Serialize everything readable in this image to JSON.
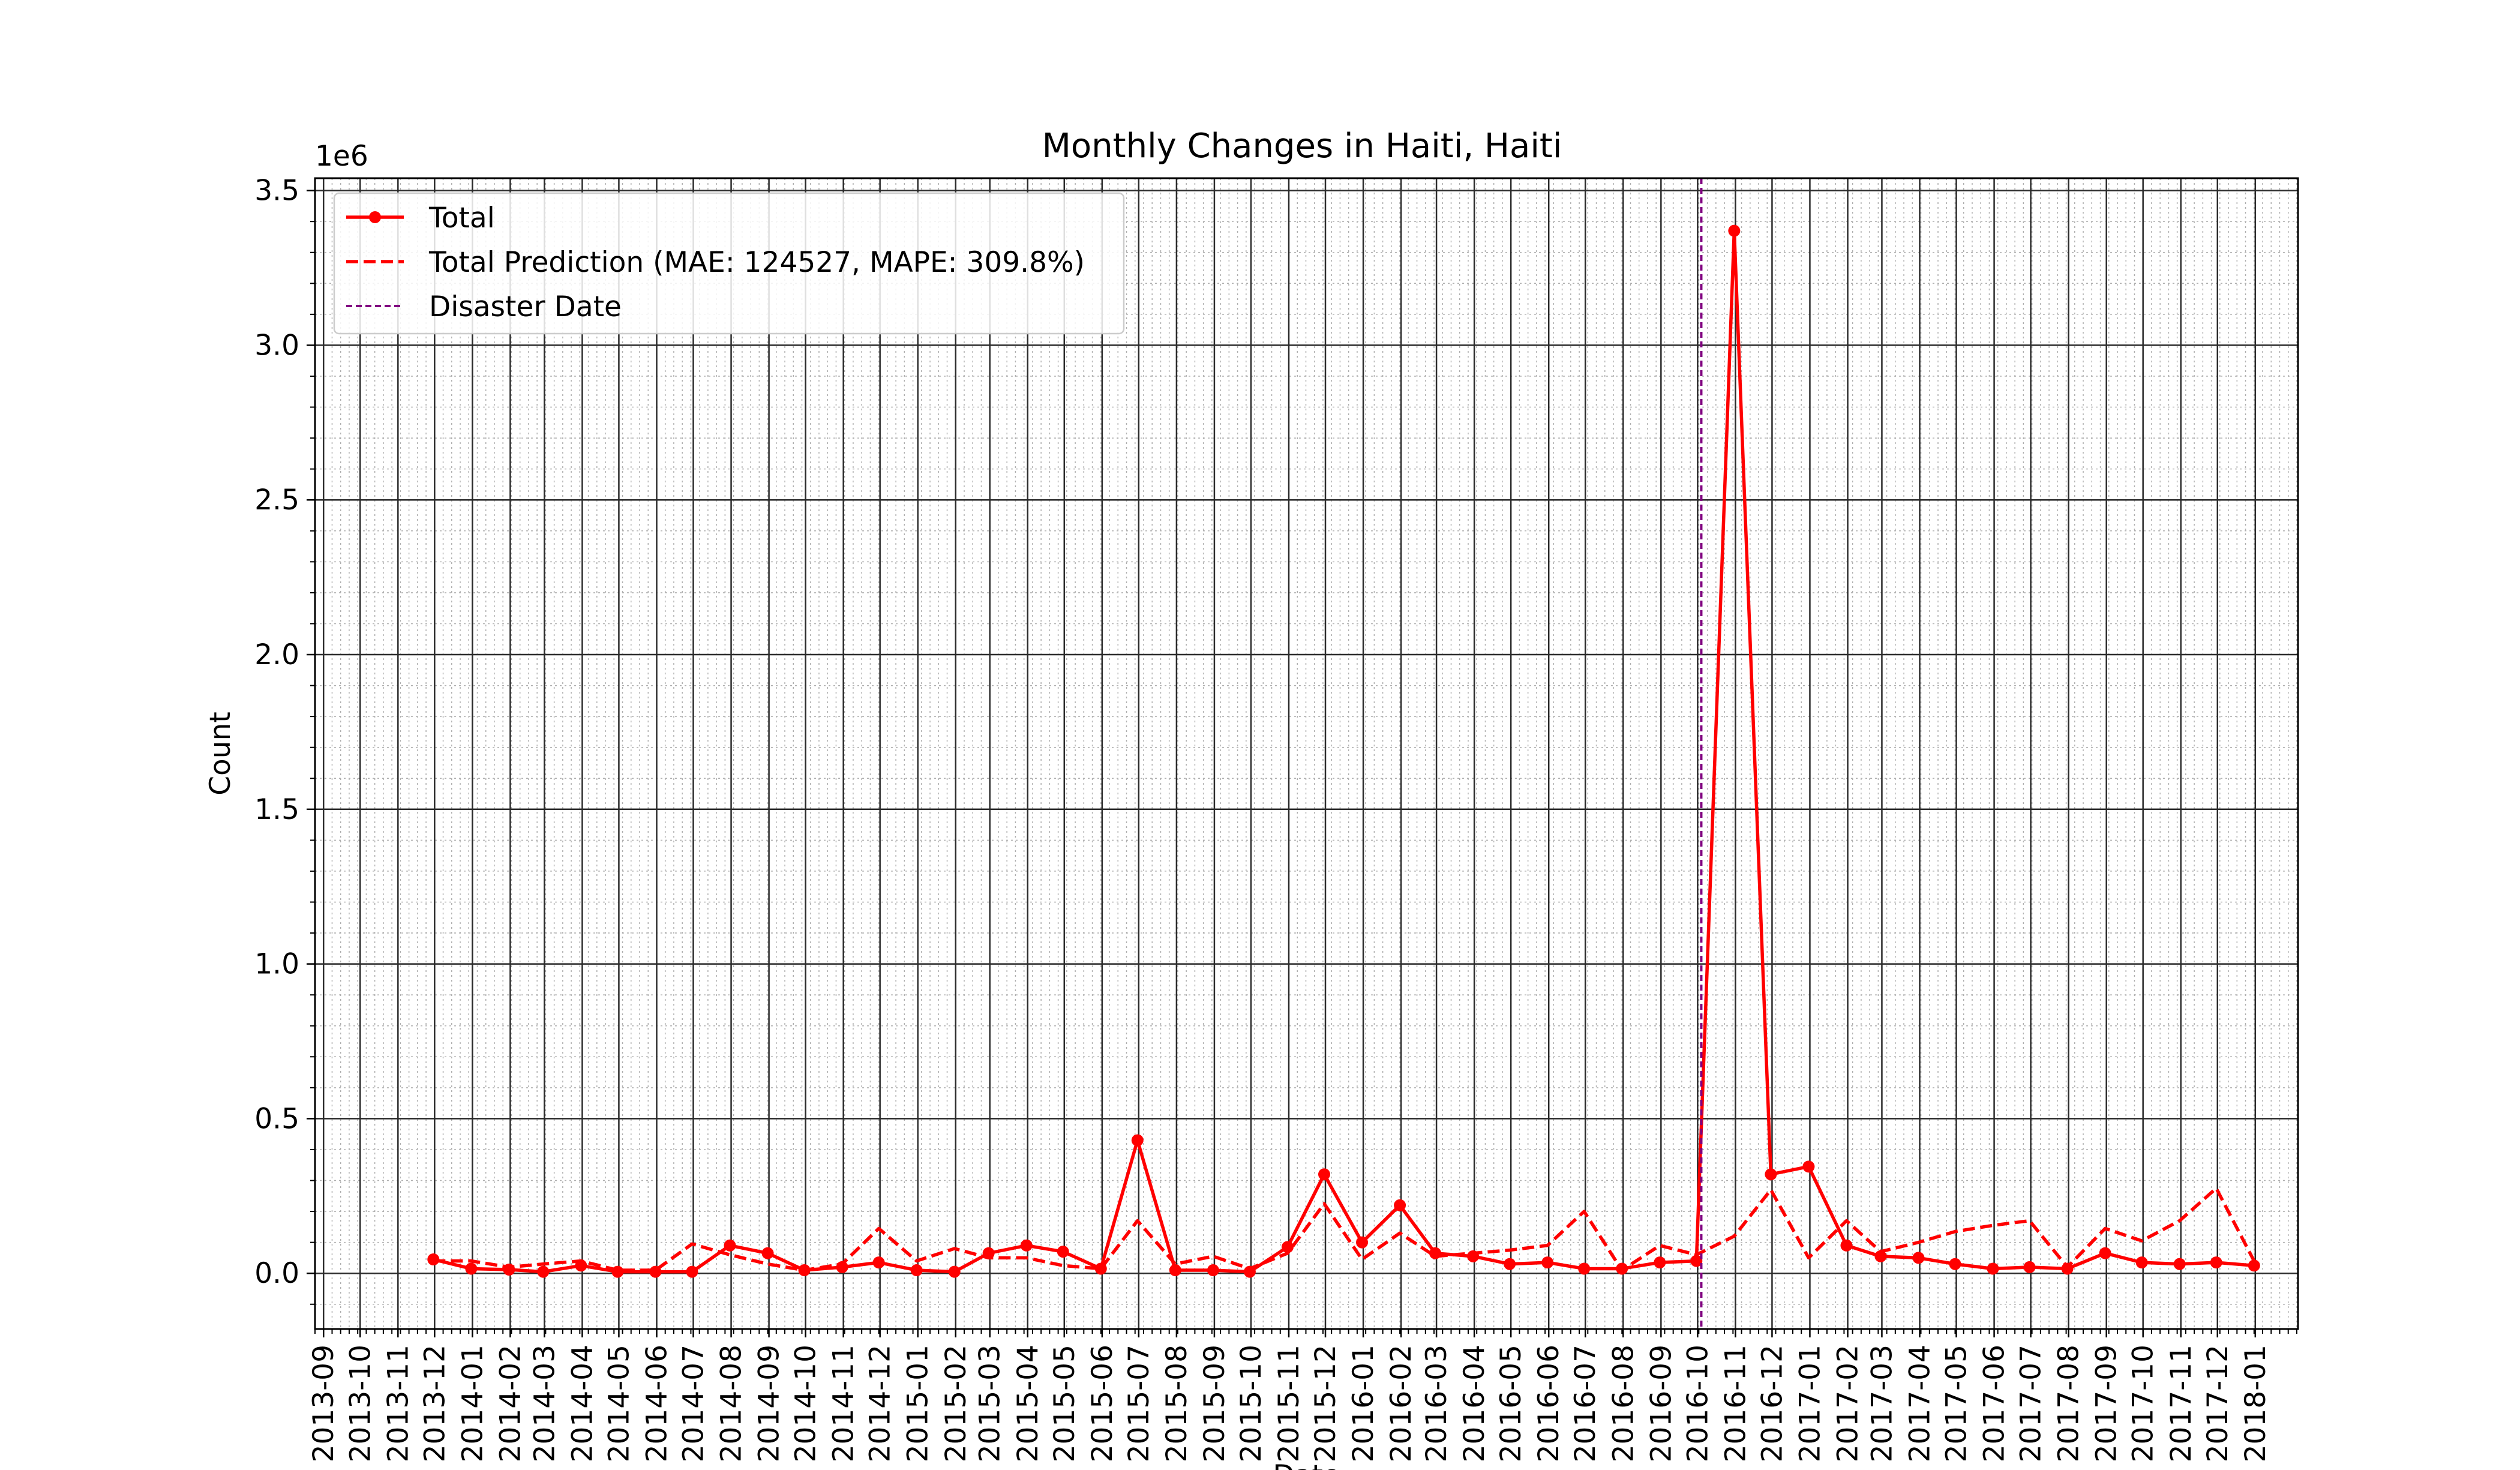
{
  "chart_data": {
    "type": "line",
    "title": "Monthly Changes in Haiti, Haiti",
    "xlabel": "Date",
    "ylabel": "Count",
    "y_offset_label": "1e6",
    "ylim": [
      -180000,
      3540000
    ],
    "xlim": [
      "2013-08-25",
      "2018-02-05"
    ],
    "y_ticks": [
      0,
      500000,
      1000000,
      1500000,
      2000000,
      2500000,
      3000000,
      3500000
    ],
    "y_tick_labels": [
      "0.0",
      "0.5",
      "1.0",
      "1.5",
      "2.0",
      "2.5",
      "3.0",
      "3.5"
    ],
    "x_ticks": [
      "2013-09-01",
      "2013-10-01",
      "2013-11-01",
      "2013-12-01",
      "2014-01-01",
      "2014-02-01",
      "2014-03-01",
      "2014-04-01",
      "2014-05-01",
      "2014-06-01",
      "2014-07-01",
      "2014-08-01",
      "2014-09-01",
      "2014-10-01",
      "2014-11-01",
      "2014-12-01",
      "2015-01-01",
      "2015-02-01",
      "2015-03-01",
      "2015-04-01",
      "2015-05-01",
      "2015-06-01",
      "2015-07-01",
      "2015-08-01",
      "2015-09-01",
      "2015-10-01",
      "2015-11-01",
      "2015-12-01",
      "2016-01-01",
      "2016-02-01",
      "2016-03-01",
      "2016-04-01",
      "2016-05-01",
      "2016-06-01",
      "2016-07-01",
      "2016-08-01",
      "2016-09-01",
      "2016-10-01",
      "2016-11-01",
      "2016-12-01",
      "2017-01-01",
      "2017-02-01",
      "2017-03-01",
      "2017-04-01",
      "2017-05-01",
      "2017-06-01",
      "2017-07-01",
      "2017-08-01",
      "2017-09-01",
      "2017-10-01",
      "2017-11-01",
      "2017-12-01",
      "2018-01-01"
    ],
    "x_tick_labels": [
      "2013-09",
      "2013-10",
      "2013-11",
      "2013-12",
      "2014-01",
      "2014-02",
      "2014-03",
      "2014-04",
      "2014-05",
      "2014-06",
      "2014-07",
      "2014-08",
      "2014-09",
      "2014-10",
      "2014-11",
      "2014-12",
      "2015-01",
      "2015-02",
      "2015-03",
      "2015-04",
      "2015-05",
      "2015-06",
      "2015-07",
      "2015-08",
      "2015-09",
      "2015-10",
      "2015-11",
      "2015-12",
      "2016-01",
      "2016-02",
      "2016-03",
      "2016-04",
      "2016-05",
      "2016-06",
      "2016-07",
      "2016-08",
      "2016-09",
      "2016-10",
      "2016-11",
      "2016-12",
      "2017-01",
      "2017-02",
      "2017-03",
      "2017-04",
      "2017-05",
      "2017-06",
      "2017-07",
      "2017-08",
      "2017-09",
      "2017-10",
      "2017-11",
      "2017-12",
      "2018-01"
    ],
    "x": [
      "2013-11-30",
      "2013-12-31",
      "2014-01-31",
      "2014-02-28",
      "2014-03-31",
      "2014-04-30",
      "2014-05-31",
      "2014-06-30",
      "2014-07-31",
      "2014-08-31",
      "2014-09-30",
      "2014-10-31",
      "2014-11-30",
      "2014-12-31",
      "2015-01-31",
      "2015-02-28",
      "2015-03-31",
      "2015-04-30",
      "2015-05-31",
      "2015-06-30",
      "2015-07-31",
      "2015-08-31",
      "2015-09-30",
      "2015-10-31",
      "2015-11-30",
      "2015-12-31",
      "2016-01-31",
      "2016-02-29",
      "2016-03-31",
      "2016-04-30",
      "2016-05-31",
      "2016-06-30",
      "2016-07-31",
      "2016-08-31",
      "2016-09-30",
      "2016-10-31",
      "2016-11-30",
      "2016-12-31",
      "2017-01-31",
      "2017-02-28",
      "2017-03-31",
      "2017-04-30",
      "2017-05-31",
      "2017-06-30",
      "2017-07-31",
      "2017-08-31",
      "2017-09-30",
      "2017-10-31",
      "2017-11-30",
      "2017-12-31"
    ],
    "series": [
      {
        "name": "Total",
        "color": "#ff0000",
        "style": "solid-with-markers",
        "values": [
          45000,
          15000,
          12000,
          5000,
          25000,
          5000,
          5000,
          5000,
          90000,
          65000,
          10000,
          20000,
          35000,
          10000,
          5000,
          65000,
          90000,
          70000,
          15000,
          430000,
          10000,
          10000,
          5000,
          85000,
          320000,
          100000,
          220000,
          65000,
          55000,
          30000,
          35000,
          15000,
          15000,
          35000,
          40000,
          3370000,
          320000,
          345000,
          90000,
          55000,
          50000,
          30000,
          15000,
          20000,
          15000,
          65000,
          35000,
          30000,
          35000,
          25000
        ]
      },
      {
        "name": "Total Prediction (MAE: 124527, MAPE: 309.8%)",
        "color": "#ff0000",
        "style": "dashed",
        "values": [
          40000,
          40000,
          20000,
          30000,
          40000,
          10000,
          10000,
          95000,
          60000,
          30000,
          10000,
          30000,
          145000,
          40000,
          80000,
          50000,
          50000,
          25000,
          15000,
          170000,
          30000,
          55000,
          15000,
          65000,
          225000,
          45000,
          130000,
          55000,
          65000,
          75000,
          90000,
          200000,
          10000,
          90000,
          60000,
          120000,
          270000,
          50000,
          170000,
          70000,
          100000,
          135000,
          155000,
          170000,
          20000,
          145000,
          105000,
          170000,
          275000,
          40000
        ]
      }
    ],
    "vertical_line": {
      "name": "Disaster Date",
      "x": "2016-10-04",
      "color": "#800080",
      "style": "dashed"
    },
    "legend": {
      "position": "top-left",
      "entries": [
        "Total",
        "Total Prediction (MAE: 124527, MAPE: 309.8%)",
        "Disaster Date"
      ]
    },
    "grid": {
      "major": true,
      "minor": true
    }
  }
}
